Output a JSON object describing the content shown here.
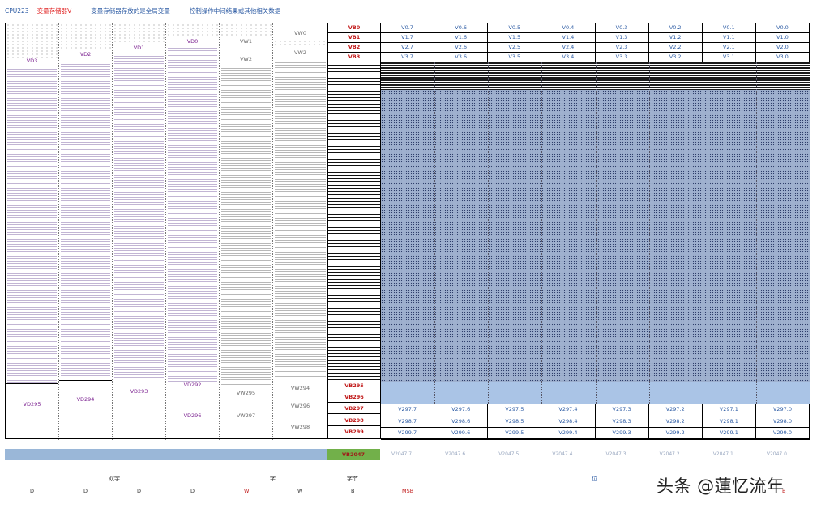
{
  "header": {
    "cpu": "CPU223",
    "var_title": "变量存储器V",
    "desc1": "变量存储器存放的是全局变量",
    "desc2": "控制操作中间结果或其他相关数据"
  },
  "left_columns": [
    {
      "top": "",
      "bottom": "VD295"
    },
    {
      "top": "VD2",
      "bottom": "VD294"
    },
    {
      "top": "VD1",
      "bottom": "VD293"
    },
    {
      "top": "VD0",
      "bottom": "VD292"
    },
    {
      "top": "VW1",
      "bottom": "VW295"
    },
    {
      "top": "VW0",
      "bottom": "VW294"
    }
  ],
  "left_extra": {
    "vd3": "VD3",
    "vd296": "VD296",
    "vw2": "VW2",
    "vw297": "VW297",
    "vw296": "VW296",
    "vw298": "VW298"
  },
  "bytes_top": [
    "VB0",
    "VB1",
    "VB2",
    "VB3"
  ],
  "bytes_bottom": [
    "VB295",
    "VB296",
    "VB297",
    "VB298",
    "VB299"
  ],
  "grid_top": [
    [
      "V0.7",
      "V0.6",
      "V0.5",
      "V0.4",
      "V0.3",
      "V0.2",
      "V0.1",
      "V0.0"
    ],
    [
      "V1.7",
      "V1.6",
      "V1.5",
      "V1.4",
      "V1.3",
      "V1.2",
      "V1.1",
      "V1.0"
    ],
    [
      "V2.7",
      "V2.6",
      "V2.5",
      "V2.4",
      "V2.3",
      "V2.2",
      "V2.1",
      "V2.0"
    ],
    [
      "V3.7",
      "V3.6",
      "V3.5",
      "V3.4",
      "V3.3",
      "V3.2",
      "V3.1",
      "V3.0"
    ]
  ],
  "grid_bottom": [
    [
      "V297.7",
      "V297.6",
      "V297.5",
      "V297.4",
      "V297.3",
      "V297.2",
      "V297.1",
      "V297.0"
    ],
    [
      "V298.7",
      "V298.6",
      "V298.5",
      "V298.4",
      "V298.3",
      "V298.2",
      "V298.1",
      "V298.0"
    ],
    [
      "V299.7",
      "V299.6",
      "V299.5",
      "V299.4",
      "V299.3",
      "V299.2",
      "V299.1",
      "V299.0"
    ]
  ],
  "footer": {
    "ellipsis": ". . .",
    "last_byte": "VB2047",
    "grid_faint": [
      "V2047.7",
      "V2047.6",
      "V2047.5",
      "V2047.4",
      "V2047.3",
      "V2047.2",
      "V2047.1",
      "V2047.0"
    ]
  },
  "legend": {
    "dword": "双字",
    "word": "字",
    "byte": "字节",
    "bit": "位",
    "letters": [
      "D",
      "D",
      "D",
      "D",
      "W",
      "W",
      "B"
    ],
    "msb": "MSB",
    "lsb": "B"
  },
  "watermark": "头条 @蓮忆流年"
}
